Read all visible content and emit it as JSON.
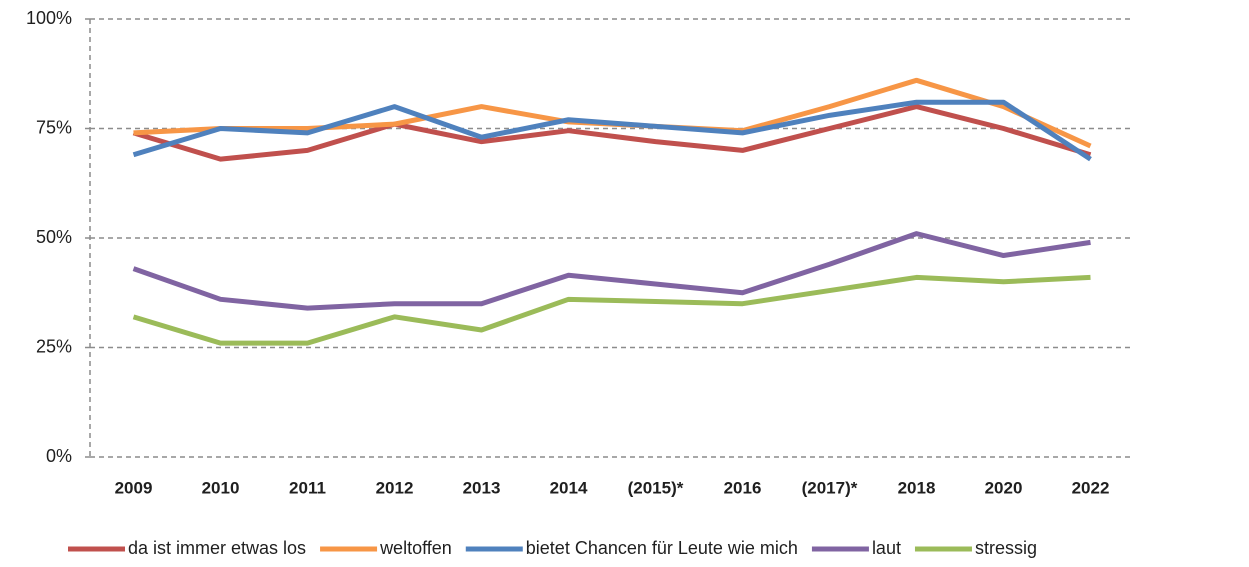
{
  "chart_data": {
    "type": "line",
    "categories": [
      "2009",
      "2010",
      "2011",
      "2012",
      "2013",
      "2014",
      "(2015)*",
      "2016",
      "(2017)*",
      "2018",
      "2020",
      "2022"
    ],
    "series": [
      {
        "name": "da ist immer etwas los",
        "color": "#c0504d",
        "values": [
          74,
          68,
          70,
          76,
          72,
          74.5,
          72,
          70,
          75,
          80,
          75,
          69
        ]
      },
      {
        "name": "weltoffen",
        "color": "#f79646",
        "values": [
          74,
          75,
          75,
          76,
          80,
          76.5,
          75.5,
          74.5,
          80,
          86,
          80,
          71
        ]
      },
      {
        "name": "bietet Chancen für Leute wie mich",
        "color": "#4f81bd",
        "values": [
          69,
          75,
          74,
          80,
          73,
          77,
          75.5,
          74,
          78,
          81,
          81,
          68
        ]
      },
      {
        "name": "laut",
        "color": "#8064a2",
        "values": [
          43,
          36,
          34,
          35,
          35,
          41.5,
          39.5,
          37.5,
          44,
          51,
          46,
          49
        ]
      },
      {
        "name": "stressig",
        "color": "#9bbb59",
        "values": [
          32,
          26,
          26,
          32,
          29,
          36,
          35.5,
          35,
          38,
          41,
          40,
          41
        ]
      }
    ],
    "ylim": [
      0,
      100
    ],
    "yticks": [
      {
        "value": 0,
        "label": "0%"
      },
      {
        "value": 25,
        "label": "25%"
      },
      {
        "value": 50,
        "label": "50%"
      },
      {
        "value": 75,
        "label": "75%"
      },
      {
        "value": 100,
        "label": "100%"
      }
    ],
    "grid": true,
    "legend": "bottom"
  }
}
